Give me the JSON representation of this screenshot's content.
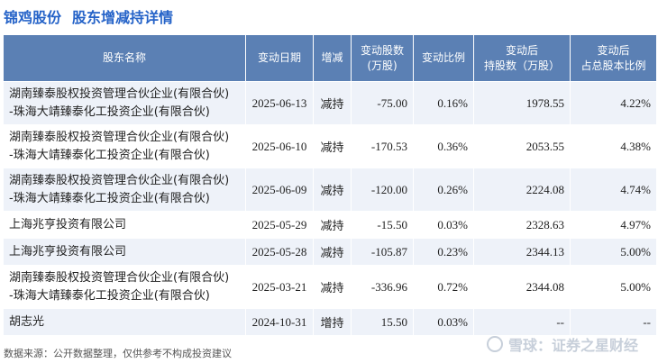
{
  "header": {
    "company": "锦鸡股份",
    "subtitle": "股东增减持详情"
  },
  "table": {
    "columns": [
      "股东名称",
      "变动日期",
      "增减",
      "变动股数\n(万股)",
      "变动比例",
      "变动后\n持股数（万股）",
      "变动后\n占总股本比例"
    ],
    "rows": [
      {
        "holder": "湖南臻泰股权投资管理合伙企业(有限合伙)\n-珠海大靖臻泰化工投资企业(有限合伙)",
        "date": "2025-06-13",
        "direction": "减持",
        "change": "-75.00",
        "ratio": "0.16%",
        "after": "1978.55",
        "after_pct": "4.22%"
      },
      {
        "holder": "湖南臻泰股权投资管理合伙企业(有限合伙)\n-珠海大靖臻泰化工投资企业(有限合伙)",
        "date": "2025-06-10",
        "direction": "减持",
        "change": "-170.53",
        "ratio": "0.36%",
        "after": "2053.55",
        "after_pct": "4.38%"
      },
      {
        "holder": "湖南臻泰股权投资管理合伙企业(有限合伙)\n-珠海大靖臻泰化工投资企业(有限合伙)",
        "date": "2025-06-09",
        "direction": "减持",
        "change": "-120.00",
        "ratio": "0.26%",
        "after": "2224.08",
        "after_pct": "4.74%"
      },
      {
        "holder": "上海兆亨投资有限公司",
        "date": "2025-05-29",
        "direction": "减持",
        "change": "-15.50",
        "ratio": "0.03%",
        "after": "2328.63",
        "after_pct": "4.97%"
      },
      {
        "holder": "上海兆亨投资有限公司",
        "date": "2025-05-28",
        "direction": "减持",
        "change": "-105.87",
        "ratio": "0.23%",
        "after": "2344.13",
        "after_pct": "5.00%"
      },
      {
        "holder": "湖南臻泰股权投资管理合伙企业(有限合伙)\n-珠海大靖臻泰化工投资企业(有限合伙)",
        "date": "2025-03-21",
        "direction": "减持",
        "change": "-336.96",
        "ratio": "0.72%",
        "after": "2344.08",
        "after_pct": "5.00%"
      },
      {
        "holder": "胡志光",
        "date": "2024-10-31",
        "direction": "增持",
        "change": "15.50",
        "ratio": "0.03%",
        "after": "--",
        "after_pct": "--"
      }
    ]
  },
  "colors": {
    "header_bg": "#5b80b4",
    "increase": "#cc0000",
    "decrease": "#1a8a2b",
    "title": "#2563c8"
  },
  "footer": {
    "source": "数据来源：公开数据整理，仅供参考不构成投资建议"
  },
  "watermark": {
    "text": "雪球：证券之星财经",
    "icon": "snowball-icon"
  }
}
